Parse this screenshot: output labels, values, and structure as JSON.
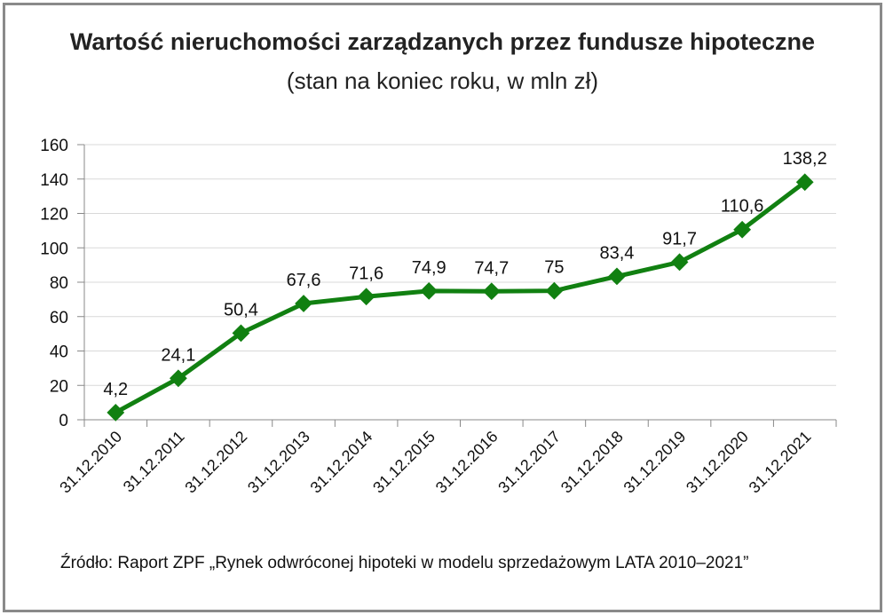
{
  "chart_data": {
    "type": "line",
    "title": "Wartość nieruchomości zarządzanych przez fundusze hipoteczne",
    "subtitle": "(stan na koniec roku, w mln zł)",
    "xlabel": "",
    "ylabel": "",
    "ylim": [
      0,
      160
    ],
    "yticks": [
      0,
      20,
      40,
      60,
      80,
      100,
      120,
      140,
      160
    ],
    "grid": true,
    "categories": [
      "31.12.2010",
      "31.12.2011",
      "31.12.2012",
      "31.12.2013",
      "31.12.2014",
      "31.12.2015",
      "31.12.2016",
      "31.12.2017",
      "31.12.2018",
      "31.12.2019",
      "31.12.2020",
      "31.12.2021"
    ],
    "series": [
      {
        "name": "Wartość nieruchomości",
        "color": "#118011",
        "values": [
          4.2,
          24.1,
          50.4,
          67.6,
          71.6,
          74.9,
          74.7,
          75,
          83.4,
          91.7,
          110.6,
          138.2
        ],
        "labels": [
          "4,2",
          "24,1",
          "50,4",
          "67,6",
          "71,6",
          "74,9",
          "74,7",
          "75",
          "83,4",
          "91,7",
          "110,6",
          "138,2"
        ]
      }
    ]
  },
  "source": "Źródło: Raport ZPF „Rynek odwróconej hipoteki w modelu sprzedażowym LATA 2010–2021”"
}
